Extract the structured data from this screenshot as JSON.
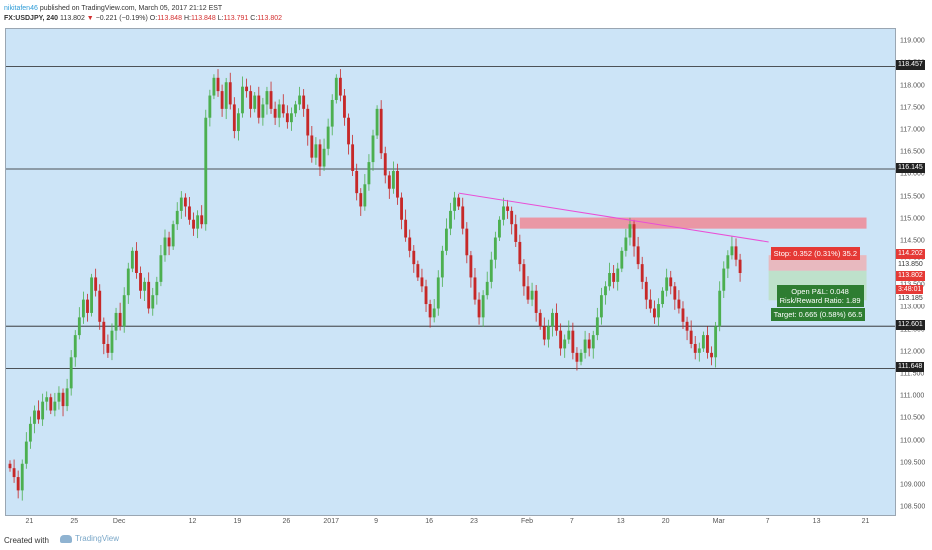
{
  "header": {
    "user": "nikitafen46",
    "published": "published on TradingView.com, March 05, 2017 21:12 EST",
    "symbol": "FX:USDJPY, 240",
    "last": "113.802",
    "change_arrow": "▼",
    "change": "−0.221 (−0.19%)",
    "o_label": "O:",
    "o_value": "113.848",
    "h_label": "H:",
    "h_value": "113.848",
    "l_label": "L:",
    "l_value": "113.791",
    "c_label": "C:",
    "c_value": "113.802"
  },
  "footer": {
    "created_with": "Created with",
    "brand": "TradingView"
  },
  "colors": {
    "up": "#4caf50",
    "down": "#c62828",
    "trend": "#e94fd6",
    "zone": "#ef8a97",
    "background": "#cce4f7"
  },
  "chart_data": {
    "type": "candlestick",
    "ylim": [
      108.3,
      119.3
    ],
    "y_ticks": [
      "108.500",
      "109.000",
      "109.500",
      "110.000",
      "110.500",
      "111.000",
      "111.500",
      "112.000",
      "112.500",
      "113.000",
      "113.500",
      "114.000",
      "114.500",
      "115.000",
      "115.500",
      "116.000",
      "116.500",
      "117.000",
      "117.500",
      "118.000",
      "118.500",
      "119.000"
    ],
    "x_ticks": [
      "21",
      "25",
      "Dec",
      "12",
      "19",
      "26",
      "2017",
      "9",
      "16",
      "23",
      "Feb",
      "7",
      "13",
      "20",
      "Mar",
      "7",
      "13",
      "21"
    ],
    "x_tick_index": [
      5,
      16,
      27,
      45,
      56,
      68,
      79,
      90,
      103,
      114,
      127,
      138,
      150,
      161,
      174,
      186,
      198,
      210
    ],
    "horizontal_levels": [
      {
        "value": 118.457,
        "label": "118.457"
      },
      {
        "value": 116.145,
        "label": "116.145"
      },
      {
        "value": 112.601,
        "label": "112.601"
      },
      {
        "value": 111.648,
        "label": "111.648"
      }
    ],
    "trendline": {
      "from": {
        "i": 110,
        "y": 115.6
      },
      "to": {
        "i": 186,
        "y": 114.5
      }
    },
    "resistance_zone": {
      "i_from": 125,
      "i_to": 210,
      "y_low": 114.8,
      "y_high": 115.05
    },
    "position": {
      "entry": 113.85,
      "stop": 114.202,
      "target": 113.185,
      "i_from": 186,
      "i_to": 210,
      "stop_label": "Stop: 0.352 (0.31%) 35.2",
      "pl_label": "Open P&L: 0.048",
      "rr_label": "Risk/Reward Ratio: 1.89",
      "target_label": "Target: 0.665 (0.58%) 66.5"
    },
    "price_tags": [
      {
        "value": 114.202,
        "label": "114.202",
        "bg": "#e53935",
        "fg": "#ffffff"
      },
      {
        "value": 113.96,
        "label": "113.850",
        "bg": "#ffffff",
        "fg": "#333333"
      },
      {
        "value": 113.7,
        "label": "113.802",
        "bg": "#e53935",
        "fg": "#ffffff"
      },
      {
        "value": 113.4,
        "label": "3:48:01",
        "bg": "#e53935",
        "fg": "#ffffff"
      },
      {
        "value": 113.185,
        "label": "113.185",
        "bg": "#ffffff",
        "fg": "#333333"
      }
    ],
    "closes": [
      109.4,
      109.2,
      108.9,
      109.5,
      110.0,
      110.4,
      110.7,
      110.5,
      110.9,
      111.0,
      110.7,
      110.9,
      111.1,
      110.8,
      111.2,
      111.9,
      112.4,
      112.8,
      113.2,
      112.9,
      113.7,
      113.4,
      112.7,
      112.2,
      112.0,
      112.5,
      112.9,
      112.6,
      113.3,
      113.9,
      114.3,
      113.8,
      113.4,
      113.6,
      113.0,
      113.3,
      113.6,
      114.2,
      114.6,
      114.4,
      114.9,
      115.2,
      115.5,
      115.3,
      115.0,
      114.8,
      115.1,
      114.9,
      117.3,
      117.8,
      118.2,
      117.9,
      117.5,
      118.1,
      117.6,
      117.0,
      117.4,
      118.0,
      117.9,
      117.5,
      117.8,
      117.3,
      117.6,
      117.9,
      117.5,
      117.3,
      117.6,
      117.4,
      117.2,
      117.4,
      117.6,
      117.8,
      117.5,
      116.9,
      116.4,
      116.7,
      116.2,
      116.6,
      117.1,
      117.7,
      118.2,
      117.8,
      117.3,
      116.7,
      116.1,
      115.6,
      115.3,
      115.8,
      116.3,
      116.9,
      117.5,
      116.5,
      116.0,
      115.7,
      116.1,
      115.5,
      115.0,
      114.6,
      114.3,
      114.0,
      113.7,
      113.5,
      113.1,
      112.8,
      113.0,
      113.7,
      114.3,
      114.8,
      115.2,
      115.5,
      115.3,
      114.8,
      114.2,
      113.7,
      113.2,
      112.8,
      113.3,
      113.6,
      114.1,
      114.6,
      115.0,
      115.3,
      115.2,
      114.9,
      114.5,
      114.0,
      113.5,
      113.2,
      113.4,
      112.9,
      112.6,
      112.3,
      112.6,
      112.9,
      112.5,
      112.1,
      112.3,
      112.5,
      112.0,
      111.8,
      112.0,
      112.3,
      112.1,
      112.4,
      112.8,
      113.3,
      113.5,
      113.8,
      113.6,
      113.9,
      114.3,
      114.6,
      114.9,
      114.4,
      114.0,
      113.6,
      113.2,
      113.0,
      112.8,
      113.1,
      113.4,
      113.7,
      113.5,
      113.2,
      113.0,
      112.7,
      112.5,
      112.2,
      112.0,
      112.1,
      112.4,
      112.0,
      111.9,
      112.6,
      113.4,
      113.9,
      114.2,
      114.4,
      114.1,
      113.8
    ],
    "note_last_bar": "113.802"
  }
}
